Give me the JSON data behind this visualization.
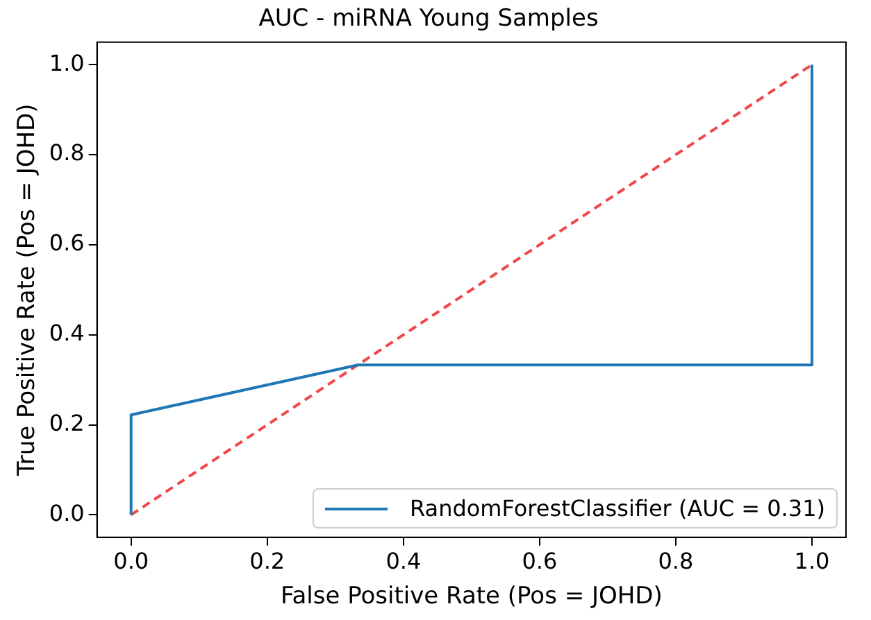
{
  "chart_data": {
    "type": "line",
    "title": "AUC - miRNA Young Samples",
    "xlabel": "False Positive Rate (Pos = JOHD)",
    "ylabel": "True Positive Rate (Pos = JOHD)",
    "series": [
      {
        "name": "RandomForestClassifier (AUC = 0.31)",
        "color": "#1f77b4",
        "x": [
          0,
          0,
          0.333,
          1,
          1
        ],
        "values": [
          0,
          0.222,
          0.333,
          0.333,
          1
        ],
        "line_style": "solid"
      },
      {
        "color": "#f0474a",
        "x": [
          0,
          1
        ],
        "values": [
          0,
          1
        ],
        "line_style": "dashed"
      }
    ],
    "xlim": [
      -0.05,
      1.05
    ],
    "ylim": [
      -0.05,
      1.05
    ],
    "xticks": [
      {
        "value": 0,
        "label": "0.0"
      },
      {
        "value": 0.2,
        "label": "0.2"
      },
      {
        "value": 0.4,
        "label": "0.4"
      },
      {
        "value": 0.6,
        "label": "0.6"
      },
      {
        "value": 0.8,
        "label": "0.8"
      },
      {
        "value": 1,
        "label": "1.0"
      }
    ],
    "yticks": [
      {
        "value": 0,
        "label": "0.0"
      },
      {
        "value": 0.2,
        "label": "0.2"
      },
      {
        "value": 0.4,
        "label": "0.4"
      },
      {
        "value": 0.6,
        "label": "0.6"
      },
      {
        "value": 0.8,
        "label": "0.8"
      },
      {
        "value": 1,
        "label": "1.0"
      }
    ],
    "grid": false,
    "legend": "bottom right",
    "marker": "none"
  }
}
